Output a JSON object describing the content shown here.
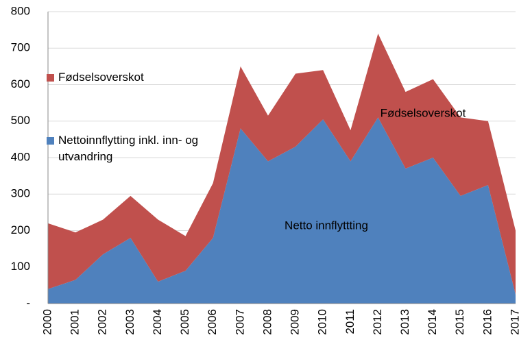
{
  "chart_data": {
    "type": "stacked_area",
    "categories": [
      "2000",
      "2001",
      "2002",
      "2003",
      "2004",
      "2005",
      "2006",
      "2007",
      "2008",
      "2009",
      "2010",
      "2011",
      "2012",
      "2013",
      "2014",
      "2015",
      "2016",
      "2017"
    ],
    "series": [
      {
        "name": "Nettoinnflytting inkl. inn- og utvandring",
        "color": "#4f81bd",
        "values": [
          40,
          65,
          135,
          180,
          60,
          90,
          180,
          480,
          390,
          430,
          505,
          390,
          510,
          370,
          400,
          295,
          325,
          25
        ]
      },
      {
        "name": "Fødselsoverskot",
        "color": "#c0504d",
        "values": [
          180,
          130,
          95,
          115,
          170,
          95,
          150,
          170,
          125,
          200,
          135,
          85,
          230,
          210,
          215,
          215,
          175,
          175
        ]
      }
    ],
    "annotations": [
      "Fødselsoverskot",
      "Netto innflyttting"
    ],
    "ylim": [
      0,
      800
    ],
    "yticks": [
      {
        "value": 0,
        "label": "-"
      },
      100,
      200,
      300,
      400,
      500,
      600,
      700,
      800
    ],
    "grid": true
  }
}
